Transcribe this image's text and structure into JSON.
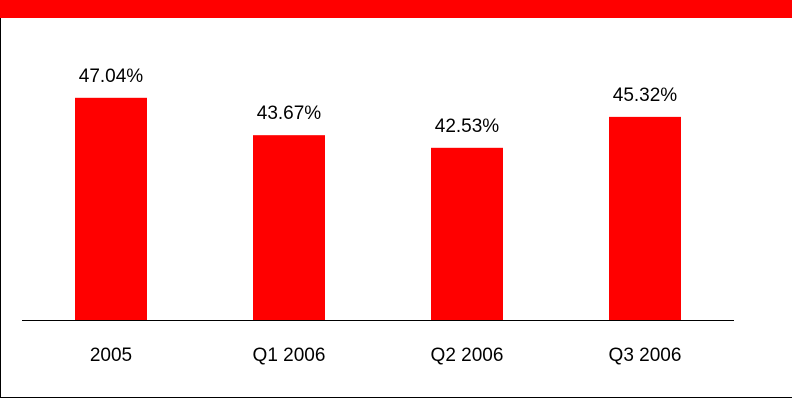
{
  "chart_data": {
    "type": "bar",
    "categories": [
      "2005",
      "Q1 2006",
      "Q2 2006",
      "Q3 2006"
    ],
    "values": [
      47.04,
      43.67,
      42.53,
      45.32
    ],
    "value_labels": [
      "47.04%",
      "43.67%",
      "42.53%",
      "45.32%"
    ],
    "color": "#ff0000",
    "ylim": [
      27,
      50
    ]
  }
}
